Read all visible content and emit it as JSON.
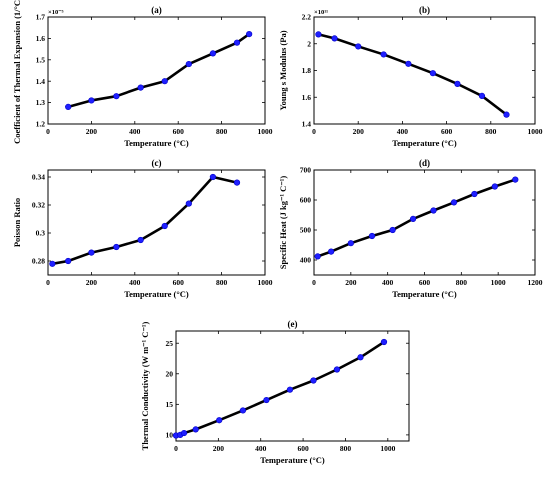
{
  "chart_data": [
    {
      "id": "a",
      "type": "line",
      "title": "(a)",
      "xlabel": "Temperature (°C)",
      "ylabel": "Coefficient of Thermal Expansion (1/°C)",
      "multiplier": "×10⁻⁵",
      "xlim": [
        0,
        1000
      ],
      "ylim": [
        1.2,
        1.7
      ],
      "xticks": [
        0,
        200,
        400,
        600,
        800,
        1000
      ],
      "yticks": [
        1.2,
        1.3,
        1.4,
        1.5,
        1.6,
        1.7
      ],
      "x": [
        93,
        200,
        315,
        427,
        538,
        649,
        760,
        871,
        927
      ],
      "y": [
        1.28,
        1.31,
        1.33,
        1.37,
        1.4,
        1.48,
        1.53,
        1.58,
        1.62
      ]
    },
    {
      "id": "b",
      "type": "line",
      "title": "(b)",
      "xlabel": "Temperature (°C)",
      "ylabel": "Young s Modulus (Pa)",
      "multiplier": "×10¹¹",
      "xlim": [
        0,
        1000
      ],
      "ylim": [
        1.4,
        2.2
      ],
      "xticks": [
        0,
        200,
        400,
        600,
        800,
        1000
      ],
      "yticks": [
        1.4,
        1.6,
        1.8,
        2.0,
        2.2
      ],
      "ytick_labels": [
        "1.4",
        "1.6",
        "1.8",
        "2",
        "2.2"
      ],
      "x": [
        20,
        93,
        200,
        315,
        427,
        538,
        649,
        760,
        871
      ],
      "y": [
        2.07,
        2.04,
        1.98,
        1.92,
        1.85,
        1.78,
        1.7,
        1.61,
        1.47
      ]
    },
    {
      "id": "c",
      "type": "line",
      "title": "(c)",
      "xlabel": "Temperature (°C)",
      "ylabel": "Poisson Ratio",
      "xlim": [
        0,
        1000
      ],
      "ylim": [
        0.27,
        0.345
      ],
      "xticks": [
        0,
        200,
        400,
        600,
        800,
        1000
      ],
      "yticks": [
        0.28,
        0.3,
        0.32,
        0.34
      ],
      "ytick_labels": [
        "0.28",
        "0.3",
        "0.32",
        "0.34"
      ],
      "x": [
        20,
        93,
        200,
        315,
        427,
        538,
        649,
        760,
        871
      ],
      "y": [
        0.278,
        0.28,
        0.286,
        0.29,
        0.295,
        0.305,
        0.321,
        0.34,
        0.336
      ]
    },
    {
      "id": "d",
      "type": "line",
      "title": "(d)",
      "xlabel": "Temperature (°C)",
      "ylabel": "Specific Heat (J kg⁻¹ C⁻¹)",
      "xlim": [
        0,
        1200
      ],
      "ylim": [
        350,
        700
      ],
      "xticks": [
        0,
        200,
        400,
        600,
        800,
        1000,
        1200
      ],
      "yticks": [
        400,
        500,
        600,
        700
      ],
      "x": [
        20,
        93,
        200,
        315,
        427,
        538,
        649,
        760,
        871,
        982,
        1093
      ],
      "y": [
        412,
        428,
        456,
        480,
        500,
        537,
        565,
        592,
        620,
        645,
        668
      ]
    },
    {
      "id": "e",
      "type": "line",
      "title": "(e)",
      "xlabel": "Temperature (°C)",
      "ylabel": "Thermal Conductivity (W m⁻¹ C⁻¹)",
      "xlim": [
        0,
        1100
      ],
      "ylim": [
        9,
        27
      ],
      "xticks": [
        0,
        200,
        400,
        600,
        800,
        1000
      ],
      "yticks": [
        10,
        15,
        20,
        25
      ],
      "x": [
        0,
        20,
        38,
        93,
        204,
        316,
        427,
        538,
        649,
        760,
        871,
        982
      ],
      "y": [
        9.9,
        10.0,
        10.3,
        10.9,
        12.4,
        14.0,
        15.7,
        17.4,
        18.9,
        20.7,
        22.7,
        25.2
      ]
    }
  ]
}
